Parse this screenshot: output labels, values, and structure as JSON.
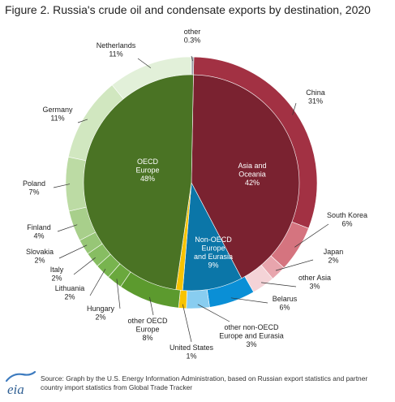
{
  "figure_title": "Figure 2. Russia's crude oil and condensate exports by destination, 2020",
  "source_note": "Source: Graph by the U.S. Energy Information Administration, based on Russian export statistics and partner country import statistics from Global Trade Tracker",
  "logo_text": "eia",
  "chart_data": {
    "type": "pie",
    "variant": "two-level donut (inner ring = region groups, outer ring = destination countries)",
    "unit": "percent of exports",
    "inner_ring": [
      {
        "name": "Asia and Oceania",
        "value": 42,
        "label_lines": [
          "Asia and",
          "Oceania",
          "42%"
        ],
        "color": "#7a2230"
      },
      {
        "name": "Non-OECD Europe and Eurasia",
        "value": 9,
        "label_lines": [
          "Non-OECD",
          "Europe",
          "and Eurasia",
          "9%"
        ],
        "color": "#0b76a8"
      },
      {
        "name": "United States",
        "value": 1,
        "label_lines": [],
        "color": "#f7c300"
      },
      {
        "name": "OECD Europe",
        "value": 48,
        "label_lines": [
          "OECD",
          "Europe",
          "48%"
        ],
        "color": "#4a7324"
      }
    ],
    "outer_ring": [
      {
        "name": "China",
        "value": 31,
        "label_lines": [
          "China",
          "31%"
        ],
        "color": "#a23143"
      },
      {
        "name": "South Korea",
        "value": 6,
        "label_lines": [
          "South Korea",
          "6%"
        ],
        "color": "#d5747f"
      },
      {
        "name": "Japan",
        "value": 2,
        "label_lines": [
          "Japan",
          "2%"
        ],
        "color": "#e8a5ad"
      },
      {
        "name": "other Asia",
        "value": 3,
        "label_lines": [
          "other Asia",
          "3%"
        ],
        "color": "#f4d3d7"
      },
      {
        "name": "Belarus",
        "value": 6,
        "label_lines": [
          "Belarus",
          "6%"
        ],
        "color": "#0a8fd6"
      },
      {
        "name": "other non-OECD Europe and Eurasia",
        "value": 3,
        "label_lines": [
          "other non-OECD",
          "Europe and Eurasia",
          "3%"
        ],
        "color": "#88cdf0"
      },
      {
        "name": "United States",
        "value": 1,
        "label_lines": [
          "United States",
          "1%"
        ],
        "color": "#f7c300"
      },
      {
        "name": "other OECD Europe",
        "value": 8,
        "label_lines": [
          "other OECD",
          "Europe",
          "8%"
        ],
        "color": "#5c9a2e"
      },
      {
        "name": "Hungary",
        "value": 2,
        "label_lines": [
          "Hungary",
          "2%"
        ],
        "color": "#6aa83d"
      },
      {
        "name": "Lithuania",
        "value": 2,
        "label_lines": [
          "Lithuania",
          "2%"
        ],
        "color": "#78b44f"
      },
      {
        "name": "Italy",
        "value": 2,
        "label_lines": [
          "Italy",
          "2%"
        ],
        "color": "#87bd62"
      },
      {
        "name": "Slovakia",
        "value": 2,
        "label_lines": [
          "Slovakia",
          "2%"
        ],
        "color": "#97c676"
      },
      {
        "name": "Finland",
        "value": 4,
        "label_lines": [
          "Finland",
          "4%"
        ],
        "color": "#a8cf8b"
      },
      {
        "name": "Poland",
        "value": 7,
        "label_lines": [
          "Poland",
          "7%"
        ],
        "color": "#bcdba4"
      },
      {
        "name": "Germany",
        "value": 11,
        "label_lines": [
          "Germany",
          "11%"
        ],
        "color": "#d1e7c0"
      },
      {
        "name": "Netherlands",
        "value": 11,
        "label_lines": [
          "Netherlands",
          "11%"
        ],
        "color": "#e2f0d9"
      },
      {
        "name": "other",
        "value": 0.3,
        "label_lines": [
          "other",
          "0.3%"
        ],
        "color": "#9aa0a6"
      }
    ]
  }
}
